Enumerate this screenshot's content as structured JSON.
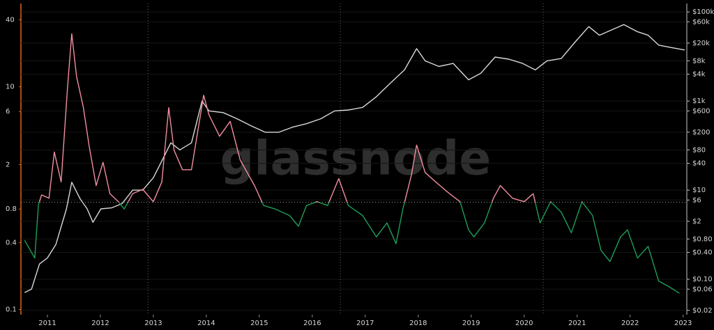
{
  "chart_data": {
    "type": "line",
    "watermark": "glassnode",
    "xlim": [
      2010.5,
      2023.07
    ],
    "xticks": [
      2011,
      2012,
      2013,
      2014,
      2015,
      2016,
      2017,
      2018,
      2019,
      2020,
      2021,
      2022,
      2023
    ],
    "ylim": [
      0.09,
      56
    ],
    "yticks": [
      0.1,
      0.4,
      0.8,
      2,
      6,
      10,
      40
    ],
    "y2lim": [
      0.016,
      155000
    ],
    "y2ticks": [
      {
        "value": 100000,
        "label": "$100k"
      },
      {
        "value": 60000,
        "label": "$60k"
      },
      {
        "value": 20000,
        "label": "$20k"
      },
      {
        "value": 8000,
        "label": "$8k"
      },
      {
        "value": 4000,
        "label": "$4k"
      },
      {
        "value": 1000,
        "label": "$1k"
      },
      {
        "value": 600,
        "label": "$600"
      },
      {
        "value": 200,
        "label": "$200"
      },
      {
        "value": 80,
        "label": "$80"
      },
      {
        "value": 40,
        "label": "$40"
      },
      {
        "value": 10,
        "label": "$10"
      },
      {
        "value": 6,
        "label": "$6"
      },
      {
        "value": 2,
        "label": "$2"
      },
      {
        "value": 0.8,
        "label": "$0.80"
      },
      {
        "value": 0.4,
        "label": "$0.40"
      },
      {
        "value": 0.1,
        "label": "$0.10"
      },
      {
        "value": 0.06,
        "label": "$0.06"
      },
      {
        "value": 0.02,
        "label": "$0.02"
      }
    ],
    "log_scale": true,
    "grid": true,
    "vlines": [
      2012.9,
      2016.53,
      2020.36
    ],
    "threshold": 0.92,
    "series": [
      {
        "axis": "y2",
        "color": "#d9d9d9",
        "x": [
          2010.57,
          2010.7,
          2010.85,
          2011.0,
          2011.16,
          2011.36,
          2011.46,
          2011.62,
          2011.75,
          2011.86,
          2012.01,
          2012.21,
          2012.41,
          2012.61,
          2012.8,
          2013.0,
          2013.2,
          2013.33,
          2013.5,
          2013.72,
          2013.92,
          2014.05,
          2014.32,
          2014.58,
          2014.84,
          2015.11,
          2015.37,
          2015.63,
          2015.89,
          2016.16,
          2016.42,
          2016.68,
          2016.95,
          2017.21,
          2017.47,
          2017.74,
          2017.97,
          2018.13,
          2018.39,
          2018.66,
          2018.95,
          2019.18,
          2019.45,
          2019.71,
          2019.97,
          2020.21,
          2020.43,
          2020.7,
          2020.96,
          2021.22,
          2021.42,
          2021.68,
          2021.88,
          2022.14,
          2022.34,
          2022.54,
          2022.76,
          2023.03
        ],
        "values": [
          0.05,
          0.06,
          0.22,
          0.3,
          0.6,
          3.8,
          15,
          6.3,
          3.8,
          1.9,
          3.8,
          4,
          5,
          10,
          10,
          19,
          56,
          115,
          80,
          115,
          1000,
          600,
          550,
          400,
          280,
          200,
          200,
          260,
          310,
          400,
          600,
          630,
          720,
          1250,
          2500,
          5000,
          15000,
          8000,
          6000,
          7000,
          3000,
          4200,
          9700,
          8700,
          7000,
          5000,
          8000,
          9000,
          21000,
          47000,
          30000,
          41000,
          52000,
          36000,
          30000,
          18000,
          16000,
          14000
        ]
      },
      {
        "color_above": "#f28da0",
        "color_below": "#1e9e5a",
        "x": [
          2010.57,
          2010.76,
          2010.83,
          2010.89,
          2011.03,
          2011.13,
          2011.26,
          2011.38,
          2011.46,
          2011.55,
          2011.68,
          2011.79,
          2011.92,
          2012.05,
          2012.18,
          2012.34,
          2012.45,
          2012.61,
          2012.8,
          2013.0,
          2013.16,
          2013.29,
          2013.39,
          2013.55,
          2013.72,
          2013.95,
          2014.05,
          2014.25,
          2014.45,
          2014.64,
          2014.91,
          2015.08,
          2015.3,
          2015.57,
          2015.74,
          2015.89,
          2016.09,
          2016.29,
          2016.5,
          2016.68,
          2016.95,
          2017.21,
          2017.41,
          2017.58,
          2017.71,
          2017.87,
          2017.97,
          2018.13,
          2018.33,
          2018.59,
          2018.79,
          2018.95,
          2019.05,
          2019.25,
          2019.42,
          2019.55,
          2019.78,
          2020.0,
          2020.17,
          2020.3,
          2020.5,
          2020.7,
          2020.89,
          2021.09,
          2021.29,
          2021.45,
          2021.62,
          2021.82,
          2021.95,
          2022.14,
          2022.34,
          2022.54,
          2022.74,
          2022.93
        ],
        "values": [
          0.42,
          0.29,
          0.87,
          1.07,
          1.0,
          2.6,
          1.4,
          10,
          30,
          12.4,
          6.5,
          2.9,
          1.3,
          2.1,
          1.1,
          0.93,
          0.8,
          1.1,
          1.2,
          0.93,
          1.4,
          6.5,
          2.7,
          1.8,
          1.8,
          8.4,
          5.6,
          3.6,
          4.9,
          2.2,
          1.3,
          0.86,
          0.8,
          0.7,
          0.56,
          0.86,
          0.93,
          0.86,
          1.5,
          0.86,
          0.7,
          0.45,
          0.6,
          0.39,
          0.8,
          1.6,
          3.0,
          1.7,
          1.4,
          1.1,
          0.93,
          0.52,
          0.45,
          0.6,
          1.0,
          1.3,
          1.0,
          0.93,
          1.1,
          0.6,
          0.93,
          0.75,
          0.49,
          0.93,
          0.7,
          0.34,
          0.27,
          0.45,
          0.52,
          0.29,
          0.37,
          0.18,
          0.16,
          0.14
        ]
      }
    ]
  }
}
